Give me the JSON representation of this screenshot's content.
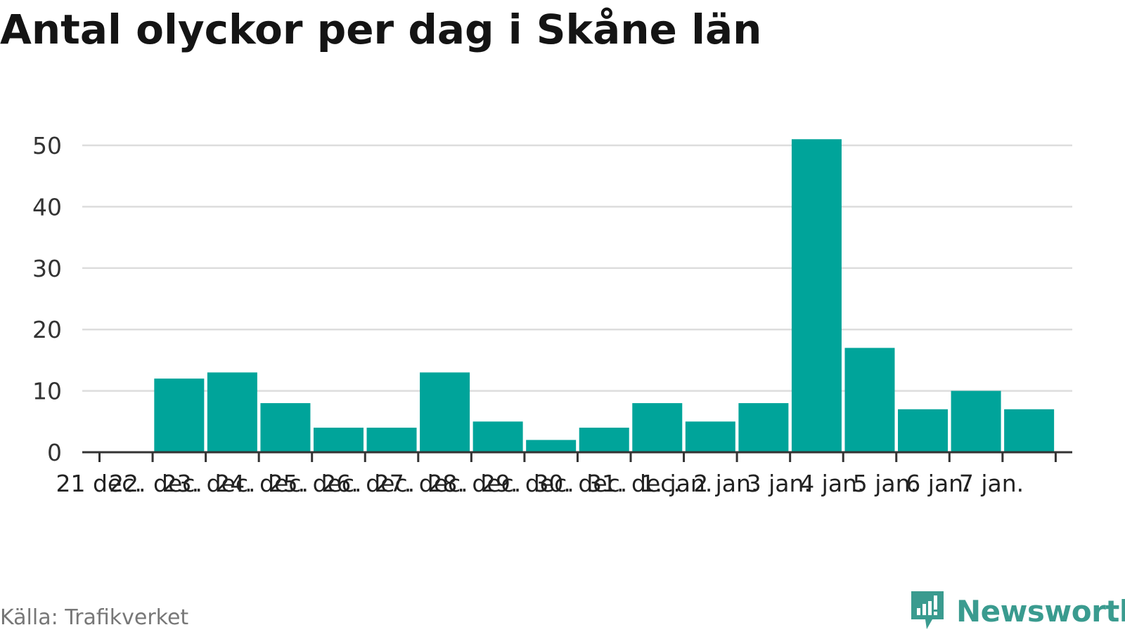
{
  "chart_data": {
    "type": "bar",
    "title": "Antal olyckor per dag i Skåne län",
    "xlabel": "",
    "ylabel": "",
    "categories": [
      "21 dec.",
      "22. dec.",
      "23. dec.",
      "24. dec.",
      "25. dec.",
      "26. dec.",
      "27. dec.",
      "28. dec.",
      "29. dec.",
      "30. dec.",
      "31. dec.",
      "1. jan.",
      "2 jan.",
      "3 jan.",
      "4 jan.",
      "5 jan.",
      "6 jan.",
      "7 jan."
    ],
    "values": [
      null,
      12,
      13,
      8,
      4,
      4,
      13,
      5,
      2,
      4,
      8,
      5,
      8,
      51,
      17,
      7,
      10,
      7
    ],
    "ylim": [
      0,
      50
    ],
    "yticks": [
      0,
      10,
      20,
      30,
      40,
      50
    ],
    "grid": true,
    "bar_color": "#00a49a",
    "grid_color": "#dddddd",
    "axis_color": "#333333"
  },
  "footer": {
    "source": "Källa: Trafikverket",
    "brand": "Newsworthy",
    "brand_color": "#3a9b8f"
  }
}
